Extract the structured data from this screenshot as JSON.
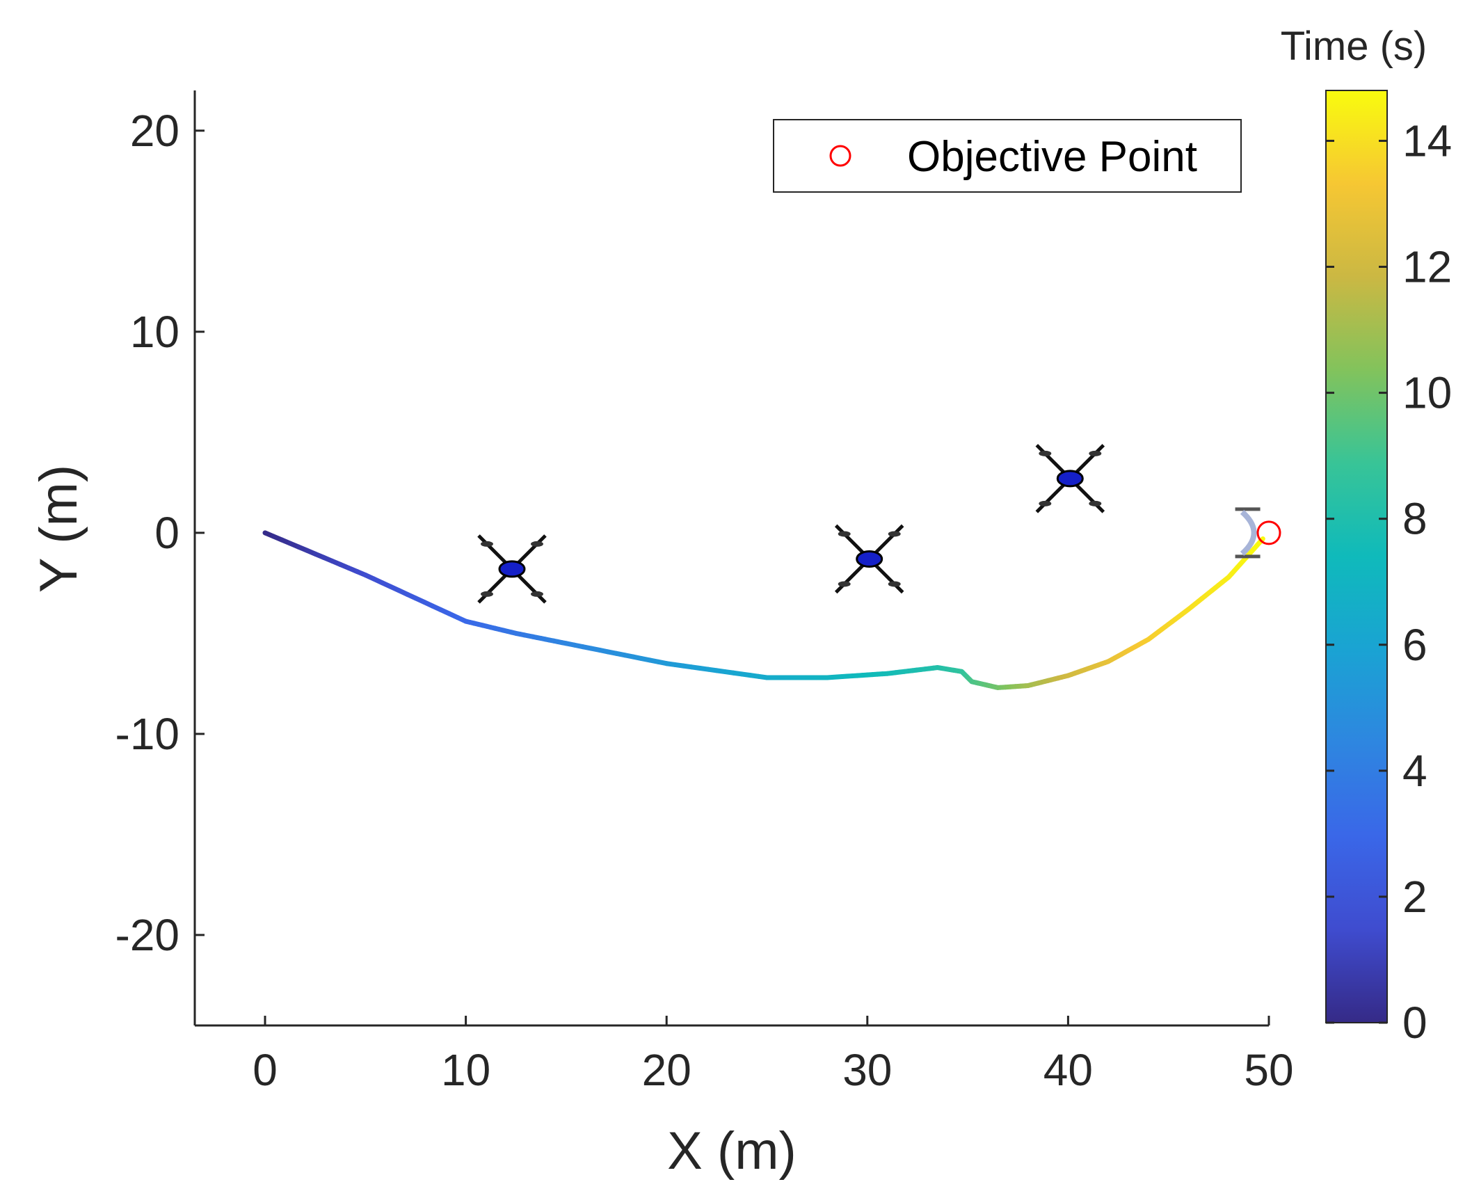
{
  "chart_data": {
    "type": "line",
    "title": "",
    "xlabel": "X (m)",
    "ylabel": "Y (m)",
    "xlim": [
      -3.5,
      50
    ],
    "ylim": [
      -24.5,
      22
    ],
    "xticks": [
      0,
      10,
      20,
      30,
      40,
      50
    ],
    "yticks": [
      -20,
      -10,
      0,
      10,
      20
    ],
    "grid": false,
    "colormap": "parula",
    "colorbar": {
      "title": "Time (s)",
      "clim": [
        0,
        14.8
      ],
      "ticks": [
        0,
        2,
        4,
        6,
        8,
        10,
        12,
        14
      ]
    },
    "series": [
      {
        "name": "Trajectory",
        "colored_by": "Time (s)",
        "points": [
          {
            "x": 0,
            "y": 0,
            "t": 0
          },
          {
            "x": 5,
            "y": -2.1,
            "t": 1.5
          },
          {
            "x": 10,
            "y": -4.4,
            "t": 3
          },
          {
            "x": 12.5,
            "y": -5.0,
            "t": 3.7
          },
          {
            "x": 15,
            "y": -5.5,
            "t": 4.4
          },
          {
            "x": 20,
            "y": -6.5,
            "t": 5.4
          },
          {
            "x": 25,
            "y": -7.2,
            "t": 6.4
          },
          {
            "x": 28,
            "y": -7.2,
            "t": 7.0
          },
          {
            "x": 31,
            "y": -7.0,
            "t": 7.6
          },
          {
            "x": 33.5,
            "y": -6.7,
            "t": 8.1
          },
          {
            "x": 34.7,
            "y": -6.9,
            "t": 8.6
          },
          {
            "x": 35.2,
            "y": -7.4,
            "t": 9.2
          },
          {
            "x": 36.5,
            "y": -7.7,
            "t": 10.0
          },
          {
            "x": 38,
            "y": -7.6,
            "t": 11.0
          },
          {
            "x": 40,
            "y": -7.1,
            "t": 12.0
          },
          {
            "x": 42,
            "y": -6.4,
            "t": 12.8
          },
          {
            "x": 44,
            "y": -5.3,
            "t": 13.5
          },
          {
            "x": 46,
            "y": -3.8,
            "t": 14.0
          },
          {
            "x": 48,
            "y": -2.2,
            "t": 14.4
          },
          {
            "x": 49.7,
            "y": -0.3,
            "t": 14.8
          }
        ]
      }
    ],
    "markers": [
      {
        "name": "Objective Point",
        "x": 50,
        "y": 0,
        "symbol": "circle",
        "color": "#ff0000"
      }
    ],
    "obstacles": [
      {
        "name": "drone",
        "x": 12.3,
        "y": -1.8
      },
      {
        "name": "drone",
        "x": 30.1,
        "y": -1.3
      },
      {
        "name": "drone",
        "x": 40.1,
        "y": 2.7
      },
      {
        "name": "drone-end",
        "x": 49.5,
        "y": 0
      }
    ],
    "legend": {
      "entries": [
        "Objective Point"
      ],
      "position": "top-right"
    }
  }
}
